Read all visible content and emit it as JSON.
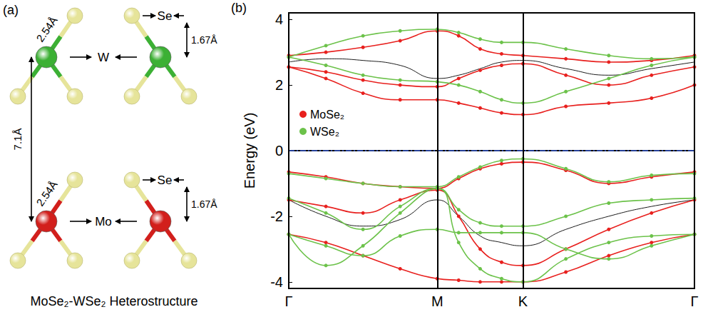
{
  "structure": {
    "panel_label": "(a)",
    "caption": "MoSe₂-WSe₂ Heterostructure",
    "interlayer_label": "7.1Å",
    "layers": [
      {
        "metal": "W",
        "metal_color": "#3cb034",
        "chalcogen": "Se",
        "chalcogen_color": "#e6e49a",
        "bond_label": "2.54Å",
        "thickness_label": "1.67Å"
      },
      {
        "metal": "Mo",
        "metal_color": "#d21f1c",
        "chalcogen": "Se",
        "chalcogen_color": "#e6e49a",
        "bond_label": "2.54Å",
        "thickness_label": "1.67Å"
      }
    ]
  },
  "chart_data": {
    "type": "line",
    "panel_label": "(b)",
    "y_label": "Energy (eV)",
    "x": [
      0,
      0.25,
      0.5,
      0.75,
      1.0,
      1.144,
      1.289,
      1.433,
      1.577,
      1.866,
      2.155,
      2.443,
      2.732
    ],
    "xlim": [
      0,
      2.732
    ],
    "xticks": [
      {
        "value": 0,
        "label": "Γ"
      },
      {
        "value": 1.0,
        "label": "M"
      },
      {
        "value": 1.577,
        "label": "K"
      },
      {
        "value": 2.732,
        "label": "Γ"
      }
    ],
    "ylim": [
      -4.2,
      4.2
    ],
    "yticks": [
      -4,
      -2,
      0,
      2,
      4
    ],
    "grid": "x",
    "legend": "upper left",
    "hlines": [
      {
        "value": 0,
        "color": "#3355cc",
        "line_style": "dashdot"
      }
    ],
    "series": [
      {
        "name": "MoSe₂",
        "color": "#e8201e",
        "marker": "circle",
        "line_style": "solid",
        "values": [
          [
            2.55,
            2.2,
            1.75,
            1.55,
            1.55,
            1.45,
            1.3,
            1.15,
            1.1,
            1.35,
            1.45,
            1.6,
            2.0
          ],
          [
            2.55,
            2.4,
            2.15,
            2.0,
            1.95,
            2.2,
            2.45,
            2.6,
            2.65,
            2.3,
            2.0,
            2.3,
            2.55
          ],
          [
            2.9,
            3.0,
            3.15,
            3.35,
            3.65,
            3.5,
            3.1,
            2.95,
            2.9,
            2.8,
            2.7,
            2.75,
            2.9
          ],
          [
            -0.65,
            -0.8,
            -1.0,
            -1.1,
            -1.15,
            -0.85,
            -0.55,
            -0.4,
            -0.35,
            -0.6,
            -1.0,
            -0.8,
            -0.65
          ],
          [
            -1.5,
            -1.7,
            -1.9,
            -1.5,
            -1.2,
            -2.0,
            -3.0,
            -3.4,
            -3.5,
            -3.0,
            -2.4,
            -1.9,
            -1.5
          ],
          [
            -2.55,
            -2.8,
            -3.2,
            -3.6,
            -3.9,
            -3.95,
            -4.0,
            -4.0,
            -4.0,
            -3.7,
            -3.2,
            -2.8,
            -2.55
          ]
        ]
      },
      {
        "name": "WSe₂",
        "color": "#6cc24a",
        "marker": "circle",
        "line_style": "solid",
        "values": [
          [
            2.85,
            2.6,
            2.3,
            2.15,
            2.1,
            2.0,
            1.8,
            1.55,
            1.45,
            1.8,
            2.2,
            2.6,
            2.85
          ],
          [
            2.85,
            3.2,
            3.5,
            3.65,
            3.7,
            3.6,
            3.4,
            3.3,
            3.3,
            3.1,
            2.9,
            2.8,
            2.85
          ],
          [
            -0.7,
            -0.85,
            -1.0,
            -1.1,
            -1.1,
            -0.8,
            -0.5,
            -0.3,
            -0.25,
            -0.55,
            -0.95,
            -0.75,
            -0.7
          ],
          [
            -1.45,
            -1.9,
            -2.4,
            -1.7,
            -1.15,
            -1.8,
            -2.2,
            -2.3,
            -2.3,
            -2.0,
            -1.6,
            -1.5,
            -1.45
          ],
          [
            -2.55,
            -3.5,
            -2.9,
            -1.9,
            -1.15,
            -2.8,
            -3.6,
            -3.9,
            -4.0,
            -3.3,
            -2.8,
            -2.6,
            -2.55
          ],
          [
            -2.55,
            -2.9,
            -3.2,
            -2.6,
            -2.4,
            -2.5,
            -2.5,
            -2.5,
            -2.5,
            -3.0,
            -3.3,
            -2.9,
            -2.55
          ]
        ]
      },
      {
        "color": "#000000",
        "marker": "none",
        "line_style": "solid",
        "values": [
          [
            2.7,
            2.8,
            2.75,
            2.6,
            2.2,
            2.3,
            2.5,
            2.7,
            2.75,
            2.5,
            2.3,
            2.5,
            2.7
          ],
          [
            -1.5,
            -2.0,
            -2.3,
            -2.1,
            -1.5,
            -2.0,
            -2.6,
            -2.8,
            -2.9,
            -2.4,
            -2.0,
            -1.7,
            -1.5
          ]
        ]
      }
    ]
  }
}
